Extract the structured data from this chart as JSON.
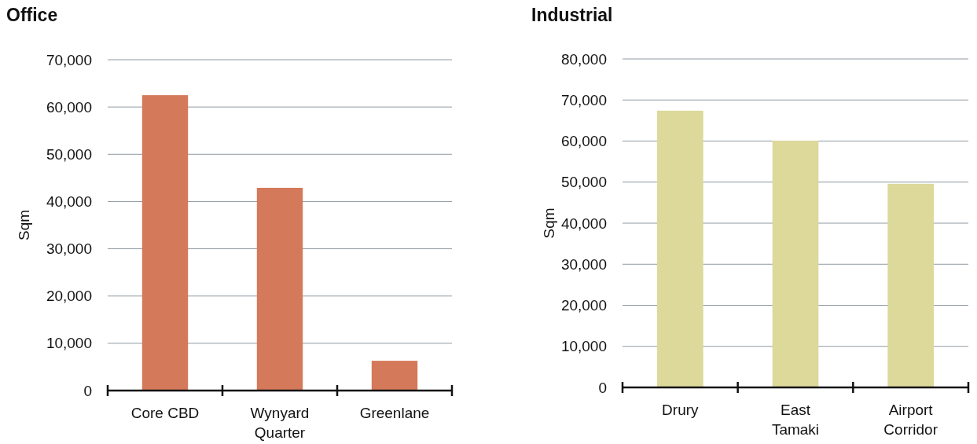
{
  "chart_data": [
    {
      "type": "bar",
      "title": "Office",
      "ylabel": "Sqm",
      "categories": [
        "Core CBD",
        "Wynyard Quarter",
        "Greenlane"
      ],
      "values": [
        62500,
        42900,
        6300
      ],
      "color": "#d4795a",
      "ylim": [
        0,
        70000
      ],
      "yticks": [
        {
          "value": 0,
          "label": "0"
        },
        {
          "value": 10000,
          "label": "10,000"
        },
        {
          "value": 20000,
          "label": "20,000"
        },
        {
          "value": 30000,
          "label": "30,000"
        },
        {
          "value": 40000,
          "label": "40,000"
        },
        {
          "value": 50000,
          "label": "50,000"
        },
        {
          "value": 60000,
          "label": "60,000"
        },
        {
          "value": 70000,
          "label": "70,000"
        }
      ],
      "grid": "y"
    },
    {
      "type": "bar",
      "title": "Industrial",
      "ylabel": "Sqm",
      "categories": [
        "Drury",
        "East Tamaki",
        "Airport Corridor"
      ],
      "values": [
        67400,
        60100,
        49600
      ],
      "color": "#dcd99b",
      "ylim": [
        0,
        80000
      ],
      "yticks": [
        {
          "value": 0,
          "label": "0"
        },
        {
          "value": 10000,
          "label": "10,000"
        },
        {
          "value": 20000,
          "label": "20,000"
        },
        {
          "value": 30000,
          "label": "30,000"
        },
        {
          "value": 40000,
          "label": "40,000"
        },
        {
          "value": 50000,
          "label": "50,000"
        },
        {
          "value": 60000,
          "label": "60,000"
        },
        {
          "value": 70000,
          "label": "70,000"
        },
        {
          "value": 80000,
          "label": "80,000"
        }
      ],
      "grid": "y"
    }
  ]
}
